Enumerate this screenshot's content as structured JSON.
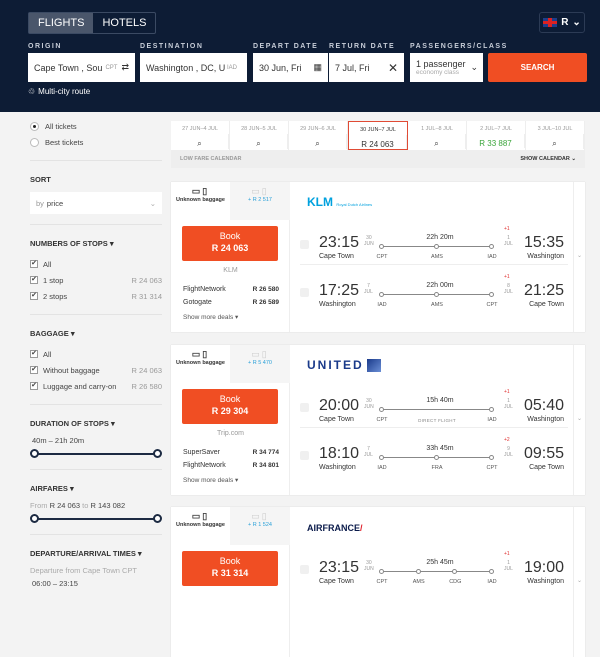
{
  "header": {
    "tabs": [
      "FLIGHTS",
      "HOTELS"
    ],
    "currency": "R",
    "origin_label": "ORIGIN",
    "origin": "Cape Town , Sou",
    "origin_code": "CPT",
    "destination_label": "DESTINATION",
    "destination": "Washington , DC, U",
    "destination_code": "IAD",
    "depart_label": "DEPART DATE",
    "depart": "30 Jun, Fri",
    "return_label": "RETURN DATE",
    "return": "7 Jul, Fri",
    "pax_label": "PASSENGERS/CLASS",
    "pax": "1 passenger",
    "class": "economy class",
    "search": "SEARCH",
    "multi_city": "Multi-city route"
  },
  "sidebar": {
    "ticket_types": [
      "All tickets",
      "Best tickets"
    ],
    "sort_title": "SORT",
    "sort_prefix": "by",
    "sort_value": "price",
    "stops_title": "NUMBERS OF STOPS",
    "stops": [
      {
        "label": "All",
        "price": ""
      },
      {
        "label": "1 stop",
        "price": "R 24 063"
      },
      {
        "label": "2 stops",
        "price": "R 31 314"
      }
    ],
    "baggage_title": "BAGGAGE",
    "baggage": [
      {
        "label": "All",
        "price": ""
      },
      {
        "label": "Without baggage",
        "price": "R 24 063"
      },
      {
        "label": "Luggage and carry-on",
        "price": "R 26 580"
      }
    ],
    "duration_title": "DURATION OF STOPS",
    "duration_range": "40m – 21h 20m",
    "airfares_title": "AIRFARES",
    "airfares_from": "From",
    "airfares_min": "R 24 063",
    "airfares_to": "to",
    "airfares_max": "R 143 082",
    "times_title": "DEPARTURE/ARRIVAL TIMES",
    "times_sub": "Departure from Cape Town CPT",
    "times_range": "06:00 – 23:15"
  },
  "calendar": {
    "days": [
      {
        "d": "27 JUN–4 JUL",
        "p": ""
      },
      {
        "d": "28 JUN–5 JUL",
        "p": ""
      },
      {
        "d": "29 JUN–6 JUL",
        "p": ""
      },
      {
        "d": "30 JUN–7 JUL",
        "p": "R 24 063"
      },
      {
        "d": "1 JUL–8 JUL",
        "p": ""
      },
      {
        "d": "2 JUL–7 JUL",
        "p": "R 33 887"
      },
      {
        "d": "3 JUL–10 JUL",
        "p": ""
      }
    ],
    "low_fare": "LOW FARE CALENDAR",
    "show": "SHOW CALENDAR"
  },
  "colors": {
    "accent": "#f04e23",
    "header": "#0d1c35",
    "cheap": "#3aa53a"
  },
  "results": [
    {
      "baggage": "Unknown baggage",
      "extra": "+ R 2 517",
      "book": "Book",
      "price": "R 24 063",
      "agency": "KLM",
      "airline": "KLM",
      "airline_sub": "Royal Dutch Airlines",
      "deals": [
        {
          "n": "FlightNetwork",
          "p": "R 26 580"
        },
        {
          "n": "Gotogate",
          "p": "R 26 589"
        }
      ],
      "more": "Show more deals",
      "segs": [
        {
          "dep": "23:15",
          "dd": "30",
          "dm": "JUN",
          "from": "Cape Town",
          "dur": "22h 20m",
          "stops": [
            "CPT",
            "AMS",
            "IAD"
          ],
          "arr": "15:35",
          "ad": "1",
          "am": "JUL",
          "plus": "+1",
          "to": "Washington"
        },
        {
          "dep": "17:25",
          "dd": "7",
          "dm": "JUL",
          "from": "Washington",
          "dur": "22h 00m",
          "stops": [
            "IAD",
            "AMS",
            "CPT"
          ],
          "arr": "21:25",
          "ad": "8",
          "am": "JUL",
          "plus": "+1",
          "to": "Cape Town"
        }
      ]
    },
    {
      "baggage": "Unknown baggage",
      "extra": "+ R 5 470",
      "book": "Book",
      "price": "R 29 304",
      "agency": "Trip.com",
      "airline": "UNITED",
      "deals": [
        {
          "n": "SuperSaver",
          "p": "R 34 774"
        },
        {
          "n": "FlightNetwork",
          "p": "R 34 801"
        }
      ],
      "more": "Show more deals",
      "segs": [
        {
          "dep": "20:00",
          "dd": "30",
          "dm": "JUN",
          "from": "Cape Town",
          "dur": "15h 40m",
          "stops": [
            "CPT",
            "IAD"
          ],
          "direct": "DIRECT FLIGHT",
          "arr": "05:40",
          "ad": "1",
          "am": "JUL",
          "plus": "+1",
          "to": "Washington"
        },
        {
          "dep": "18:10",
          "dd": "7",
          "dm": "JUL",
          "from": "Washington",
          "dur": "33h 45m",
          "stops": [
            "IAD",
            "FRA",
            "CPT"
          ],
          "arr": "09:55",
          "ad": "9",
          "am": "JUL",
          "plus": "+2",
          "to": "Cape Town"
        }
      ]
    },
    {
      "baggage": "Unknown baggage",
      "extra": "+ R 1 524",
      "book": "Book",
      "price": "R 31 314",
      "airline": "AIRFRANCE",
      "segs": [
        {
          "dep": "23:15",
          "dd": "30",
          "dm": "JUN",
          "from": "Cape Town",
          "dur": "25h 45m",
          "stops": [
            "CPT",
            "AMS",
            "CDG",
            "IAD"
          ],
          "arr": "19:00",
          "ad": "1",
          "am": "JUL",
          "plus": "+1",
          "to": "Washington"
        }
      ]
    }
  ]
}
